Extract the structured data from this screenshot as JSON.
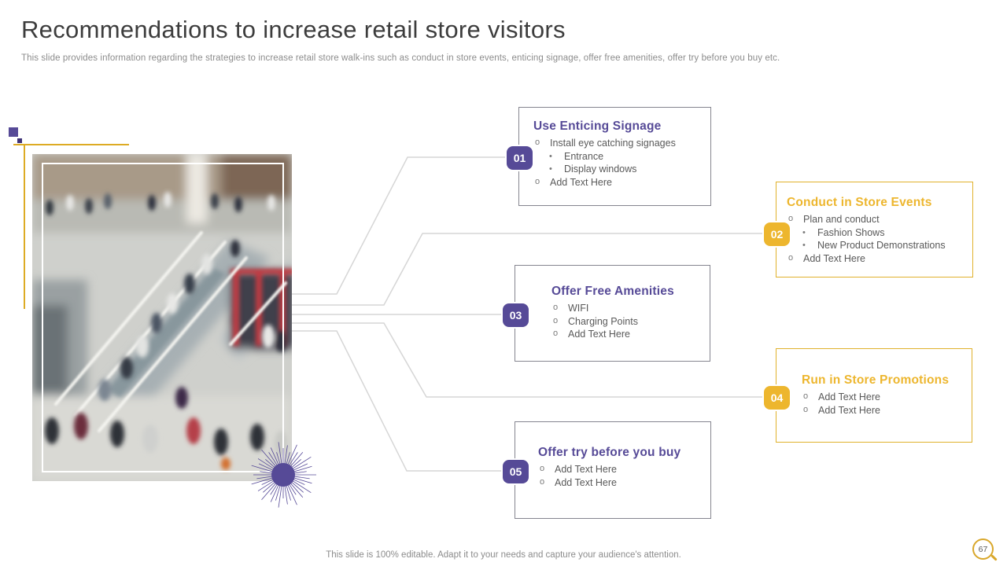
{
  "slide": {
    "title": "Recommendations to increase retail store visitors",
    "subtitle": "This slide provides information regarding the strategies to increase retail store walk-ins such as conduct in store events, enticing signage, offer free amenities, offer try before you buy etc.",
    "footer": "This slide is 100% editable. Adapt it to your needs and capture your audience's attention.",
    "page_number": "67"
  },
  "colors": {
    "purple": "#564a97",
    "purple_dark": "#3f3377",
    "yellow": "#edb62e",
    "yellow_border": "#e0b12c",
    "connector_gray": "#d6d6d6",
    "card_border_gray": "#85858f",
    "body_text_gray": "#595959"
  },
  "image": {
    "alt": "blurred-crowd-in-retail-store-with-staircase"
  },
  "cards": [
    {
      "number": "01",
      "theme": "purple",
      "title": "Use Enticing Signage",
      "items": [
        {
          "level": 1,
          "text": "Install eye catching signages"
        },
        {
          "level": 2,
          "text": "Entrance"
        },
        {
          "level": 2,
          "text": "Display windows"
        },
        {
          "level": 1,
          "text": "Add Text Here"
        }
      ]
    },
    {
      "number": "02",
      "theme": "yellow",
      "title": "Conduct in Store Events",
      "items": [
        {
          "level": 1,
          "text": "Plan and conduct"
        },
        {
          "level": 2,
          "text": "Fashion Shows"
        },
        {
          "level": 2,
          "text": "New Product Demonstrations"
        },
        {
          "level": 1,
          "text": "Add Text Here"
        }
      ]
    },
    {
      "number": "03",
      "theme": "purple",
      "title": "Offer Free Amenities",
      "items": [
        {
          "level": 1,
          "text": "WIFI"
        },
        {
          "level": 1,
          "text": "Charging Points"
        },
        {
          "level": 1,
          "text": "Add Text Here"
        }
      ]
    },
    {
      "number": "04",
      "theme": "yellow",
      "title": "Run in Store Promotions",
      "items": [
        {
          "level": 1,
          "text": "Add Text Here"
        },
        {
          "level": 1,
          "text": "Add Text Here"
        }
      ]
    },
    {
      "number": "05",
      "theme": "purple",
      "title": "Offer try before you buy",
      "items": [
        {
          "level": 1,
          "text": "Add Text Here"
        },
        {
          "level": 1,
          "text": "Add Text Here"
        }
      ]
    }
  ]
}
